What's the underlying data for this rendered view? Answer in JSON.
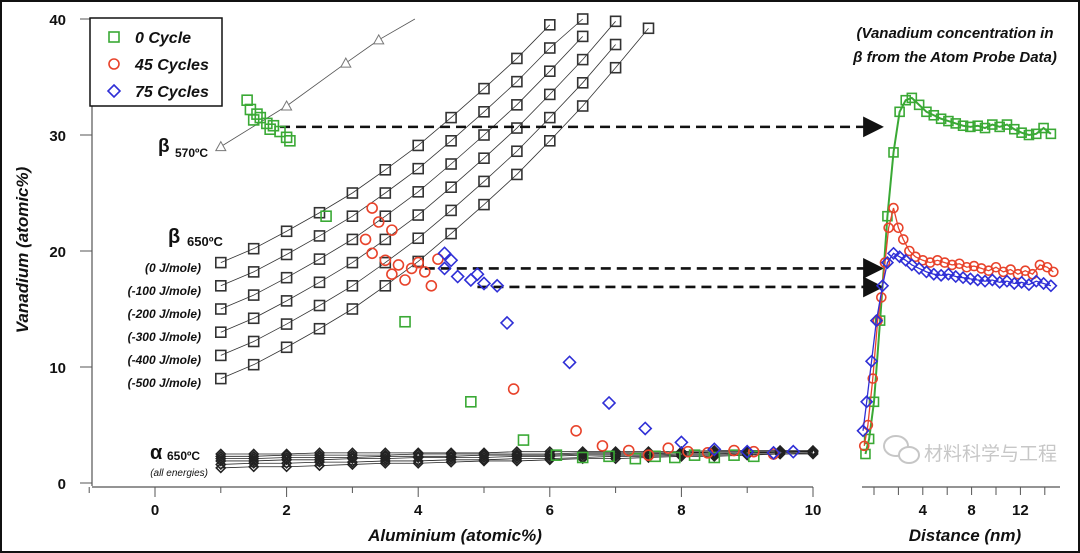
{
  "chart_data": [
    {
      "type": "scatter",
      "xlabel": "Aluminium (atomic%)",
      "ylabel": "Vanadium (atomic%)",
      "xlim": [
        -1,
        10
      ],
      "ylim": [
        0,
        40
      ],
      "xticks": [
        0,
        2,
        4,
        6,
        8,
        10
      ],
      "yticks": [
        0,
        10,
        20,
        30,
        40
      ],
      "grid": false,
      "legend": {
        "placement": "top-left",
        "entries": [
          "0 Cycle",
          "45 Cycles",
          "75 Cycles"
        ]
      },
      "colors": {
        "0 Cycle": "#3aa935",
        "45 Cycles": "#e8432b",
        "75 Cycles": "#2f2fd6",
        "model": "#333333"
      },
      "labels": {
        "beta570": {
          "main": "β",
          "sub": "570ºC"
        },
        "beta650": {
          "main": "β",
          "sub": "650ºC"
        },
        "alpha650": {
          "main": "α",
          "sub": "650ºC",
          "note": "(all energies)"
        },
        "energies": [
          "(0 J/mole)",
          "(-100 J/mole)",
          "(-200 J/mole)",
          "(-300 J/mole)",
          "(-400 J/mole)",
          "(-500 J/mole)"
        ]
      },
      "beta570_curve": {
        "marker": "triangle",
        "points": [
          [
            1,
            29
          ],
          [
            2,
            32.5
          ],
          [
            2.9,
            36.2
          ],
          [
            3.4,
            38.2
          ],
          [
            3.95,
            40
          ]
        ],
        "markers_x": [
          1,
          2,
          2.9,
          3.4
        ]
      },
      "beta650_curves": [
        {
          "energy": "(0 J/mole)",
          "x0": 1,
          "step": 0.5,
          "y": [
            19,
            20.2,
            21.7,
            23.3,
            25.0,
            27.0,
            29.1,
            31.5,
            34.0,
            36.6,
            39.5
          ]
        },
        {
          "energy": "(-100 J/mole)",
          "x0": 1,
          "step": 0.5,
          "y": [
            17,
            18.2,
            19.7,
            21.3,
            23.0,
            25.0,
            27.1,
            29.5,
            32.0,
            34.6,
            37.5,
            40.0
          ]
        },
        {
          "energy": "(-200 J/mole)",
          "x0": 1,
          "step": 0.5,
          "y": [
            15,
            16.2,
            17.7,
            19.3,
            21.0,
            23.0,
            25.1,
            27.5,
            30.0,
            32.6,
            35.5,
            38.5
          ]
        },
        {
          "energy": "(-300 J/mole)",
          "x0": 1,
          "step": 0.5,
          "y": [
            13,
            14.2,
            15.7,
            17.3,
            19.0,
            21.0,
            23.1,
            25.5,
            28.0,
            30.6,
            33.5,
            36.5,
            39.8
          ]
        },
        {
          "energy": "(-400 J/mole)",
          "x0": 1,
          "step": 0.5,
          "y": [
            11,
            12.2,
            13.7,
            15.3,
            17.0,
            19.0,
            21.1,
            23.5,
            26.0,
            28.6,
            31.5,
            34.5,
            37.8
          ]
        },
        {
          "energy": "(-500 J/mole)",
          "x0": 1,
          "step": 0.5,
          "y": [
            9,
            10.2,
            11.7,
            13.3,
            15.0,
            17.0,
            19.1,
            21.5,
            24.0,
            26.6,
            29.5,
            32.5,
            35.8,
            39.2
          ]
        }
      ],
      "alpha650_curves": {
        "x0": 1,
        "step": 0.5,
        "lines": [
          [
            1.3,
            1.4,
            1.4,
            1.5,
            1.6,
            1.7,
            1.7,
            1.8,
            1.9,
            1.9,
            2.0,
            2.1,
            2.1,
            2.2,
            2.3,
            2.3,
            2.4,
            2.5,
            2.5
          ],
          [
            1.6,
            1.7,
            1.7,
            1.8,
            1.8,
            1.9,
            1.9,
            2.0,
            2.0,
            2.1,
            2.1,
            2.2,
            2.3,
            2.3,
            2.4,
            2.4,
            2.5,
            2.5,
            2.6
          ],
          [
            1.9,
            1.9,
            2.0,
            2.0,
            2.1,
            2.1,
            2.2,
            2.2,
            2.2,
            2.3,
            2.3,
            2.4,
            2.4,
            2.4,
            2.5,
            2.5,
            2.6,
            2.6,
            2.7
          ],
          [
            2.1,
            2.1,
            2.2,
            2.2,
            2.2,
            2.3,
            2.3,
            2.3,
            2.4,
            2.4,
            2.4,
            2.5,
            2.5,
            2.5,
            2.6,
            2.6,
            2.6,
            2.7,
            2.7
          ],
          [
            2.3,
            2.3,
            2.4,
            2.4,
            2.4,
            2.4,
            2.5,
            2.5,
            2.5,
            2.5,
            2.5,
            2.6,
            2.6,
            2.6,
            2.6,
            2.7,
            2.7,
            2.7,
            2.75
          ],
          [
            2.5,
            2.5,
            2.5,
            2.6,
            2.6,
            2.6,
            2.6,
            2.6,
            2.6,
            2.7,
            2.7,
            2.7,
            2.7,
            2.7,
            2.7,
            2.8,
            2.8,
            2.8,
            2.8
          ]
        ]
      },
      "series": [
        {
          "name": "0 Cycle",
          "marker": "square",
          "points": [
            [
              1.4,
              33
            ],
            [
              1.45,
              32.2
            ],
            [
              1.5,
              31.3
            ],
            [
              1.55,
              31.8
            ],
            [
              1.6,
              31.5
            ],
            [
              1.7,
              31.0
            ],
            [
              1.75,
              30.5
            ],
            [
              1.8,
              30.8
            ],
            [
              1.9,
              30.3
            ],
            [
              2.0,
              29.8
            ],
            [
              2.05,
              29.5
            ],
            [
              2.6,
              23.0
            ],
            [
              3.8,
              13.9
            ],
            [
              4.8,
              7.0
            ],
            [
              5.6,
              3.7
            ],
            [
              6.1,
              2.4
            ],
            [
              6.5,
              2.2
            ],
            [
              6.9,
              2.3
            ],
            [
              7.3,
              2.1
            ],
            [
              7.6,
              2.3
            ],
            [
              7.9,
              2.2
            ],
            [
              8.2,
              2.4
            ],
            [
              8.5,
              2.2
            ],
            [
              8.8,
              2.4
            ],
            [
              9.1,
              2.3
            ]
          ]
        },
        {
          "name": "45 Cycles",
          "marker": "circle",
          "points": [
            [
              3.3,
              23.7
            ],
            [
              3.4,
              22.5
            ],
            [
              3.2,
              21
            ],
            [
              3.6,
              21.8
            ],
            [
              3.3,
              19.8
            ],
            [
              3.5,
              19.2
            ],
            [
              3.7,
              18.8
            ],
            [
              3.9,
              18.5
            ],
            [
              4.0,
              19.0
            ],
            [
              4.1,
              18.2
            ],
            [
              3.8,
              17.5
            ],
            [
              4.2,
              17.0
            ],
            [
              4.3,
              19.3
            ],
            [
              3.6,
              18.0
            ],
            [
              5.45,
              8.1
            ],
            [
              6.4,
              4.5
            ],
            [
              6.8,
              3.2
            ],
            [
              7.2,
              2.8
            ],
            [
              7.5,
              2.4
            ],
            [
              7.8,
              3.0
            ],
            [
              8.1,
              2.7
            ],
            [
              8.4,
              2.6
            ],
            [
              8.8,
              2.8
            ],
            [
              9.1,
              2.7
            ],
            [
              9.4,
              2.5
            ]
          ]
        },
        {
          "name": "75 Cycles",
          "marker": "diamond",
          "points": [
            [
              4.4,
              19.8
            ],
            [
              4.5,
              19.2
            ],
            [
              4.4,
              18.5
            ],
            [
              4.6,
              17.8
            ],
            [
              4.8,
              17.5
            ],
            [
              5.0,
              17.2
            ],
            [
              5.2,
              17.0
            ],
            [
              4.9,
              18.0
            ],
            [
              5.35,
              13.8
            ],
            [
              6.3,
              10.4
            ],
            [
              6.9,
              6.9
            ],
            [
              7.45,
              4.7
            ],
            [
              8.0,
              3.5
            ],
            [
              8.5,
              2.9
            ],
            [
              9.0,
              2.7
            ],
            [
              9.4,
              2.6
            ],
            [
              9.7,
              2.7
            ]
          ]
        }
      ],
      "arrows": [
        {
          "from": [
            1.9,
            30.7
          ],
          "to_distance_nm": 0.6,
          "y": 30.7
        },
        {
          "from": [
            4.1,
            18.5
          ],
          "to_distance_nm": 0.6,
          "y": 18.5
        },
        {
          "from": [
            4.9,
            16.9
          ],
          "to_distance_nm": 0.6,
          "y": 16.9
        }
      ]
    },
    {
      "type": "line",
      "title": "(Vanadium concentration in β from the Atom Probe Data)",
      "xlabel": "Distance (nm)",
      "xlim": [
        -1,
        15.4
      ],
      "ylim": [
        0,
        40
      ],
      "xticks": [
        0,
        2,
        4,
        6,
        8,
        10,
        12,
        14
      ],
      "xtick_labels": [
        "",
        "",
        "4",
        "",
        "8",
        "",
        "12",
        ""
      ],
      "series": [
        {
          "name": "0 Cycle",
          "marker": "square",
          "points": [
            [
              -0.7,
              2.5
            ],
            [
              -0.4,
              3.8
            ],
            [
              0,
              7
            ],
            [
              0.5,
              14
            ],
            [
              1.1,
              23
            ],
            [
              1.6,
              28.5
            ],
            [
              2.1,
              32
            ],
            [
              2.6,
              33
            ],
            [
              3.1,
              33.2
            ],
            [
              3.7,
              32.6
            ],
            [
              4.3,
              32
            ],
            [
              4.9,
              31.7
            ],
            [
              5.5,
              31.4
            ],
            [
              6.1,
              31.2
            ],
            [
              6.7,
              31
            ],
            [
              7.3,
              30.8
            ],
            [
              7.9,
              30.7
            ],
            [
              8.5,
              30.8
            ],
            [
              9.1,
              30.6
            ],
            [
              9.7,
              30.9
            ],
            [
              10.3,
              30.7
            ],
            [
              10.9,
              30.9
            ],
            [
              11.5,
              30.5
            ],
            [
              12.1,
              30.2
            ],
            [
              12.7,
              30.0
            ],
            [
              13.3,
              30.1
            ],
            [
              13.9,
              30.6
            ],
            [
              14.5,
              30.1
            ]
          ]
        },
        {
          "name": "45 Cycles",
          "marker": "circle",
          "points": [
            [
              -0.8,
              3.2
            ],
            [
              -0.5,
              5
            ],
            [
              -0.1,
              9
            ],
            [
              0.3,
              14
            ],
            [
              0.6,
              16
            ],
            [
              0.9,
              19
            ],
            [
              1.2,
              22
            ],
            [
              1.6,
              23.7
            ],
            [
              2.0,
              22
            ],
            [
              2.4,
              21
            ],
            [
              2.9,
              20
            ],
            [
              3.4,
              19.5
            ],
            [
              4.0,
              19.2
            ],
            [
              4.6,
              19
            ],
            [
              5.2,
              19.2
            ],
            [
              5.8,
              19
            ],
            [
              6.4,
              18.8
            ],
            [
              7.0,
              18.9
            ],
            [
              7.6,
              18.6
            ],
            [
              8.2,
              18.7
            ],
            [
              8.8,
              18.5
            ],
            [
              9.4,
              18.3
            ],
            [
              10.0,
              18.6
            ],
            [
              10.6,
              18.2
            ],
            [
              11.2,
              18.4
            ],
            [
              11.8,
              18.0
            ],
            [
              12.4,
              18.3
            ],
            [
              13.0,
              18.0
            ],
            [
              13.6,
              18.8
            ],
            [
              14.2,
              18.6
            ],
            [
              14.7,
              18.2
            ]
          ]
        },
        {
          "name": "75 Cycles",
          "marker": "diamond",
          "points": [
            [
              -0.9,
              4.5
            ],
            [
              -0.6,
              7
            ],
            [
              -0.2,
              10.5
            ],
            [
              0.2,
              14
            ],
            [
              0.7,
              17
            ],
            [
              1.1,
              19
            ],
            [
              1.6,
              19.8
            ],
            [
              2.1,
              19.5
            ],
            [
              2.6,
              19.2
            ],
            [
              3.1,
              18.8
            ],
            [
              3.7,
              18.5
            ],
            [
              4.3,
              18.2
            ],
            [
              4.9,
              18
            ],
            [
              5.5,
              17.9
            ],
            [
              6.1,
              18
            ],
            [
              6.7,
              17.8
            ],
            [
              7.3,
              17.7
            ],
            [
              7.9,
              17.6
            ],
            [
              8.5,
              17.5
            ],
            [
              9.1,
              17.4
            ],
            [
              9.7,
              17.5
            ],
            [
              10.3,
              17.3
            ],
            [
              10.9,
              17.4
            ],
            [
              11.5,
              17.2
            ],
            [
              12.1,
              17.3
            ],
            [
              12.7,
              17.1
            ],
            [
              13.3,
              17.4
            ],
            [
              13.9,
              17.2
            ],
            [
              14.5,
              17.0
            ]
          ]
        }
      ]
    }
  ],
  "annotation": {
    "line1": "(Vanadium concentration in",
    "line2": "β from the Atom Probe Data)"
  },
  "watermark": {
    "text": "材料科学与工程",
    "icon": "wechat-icon"
  }
}
